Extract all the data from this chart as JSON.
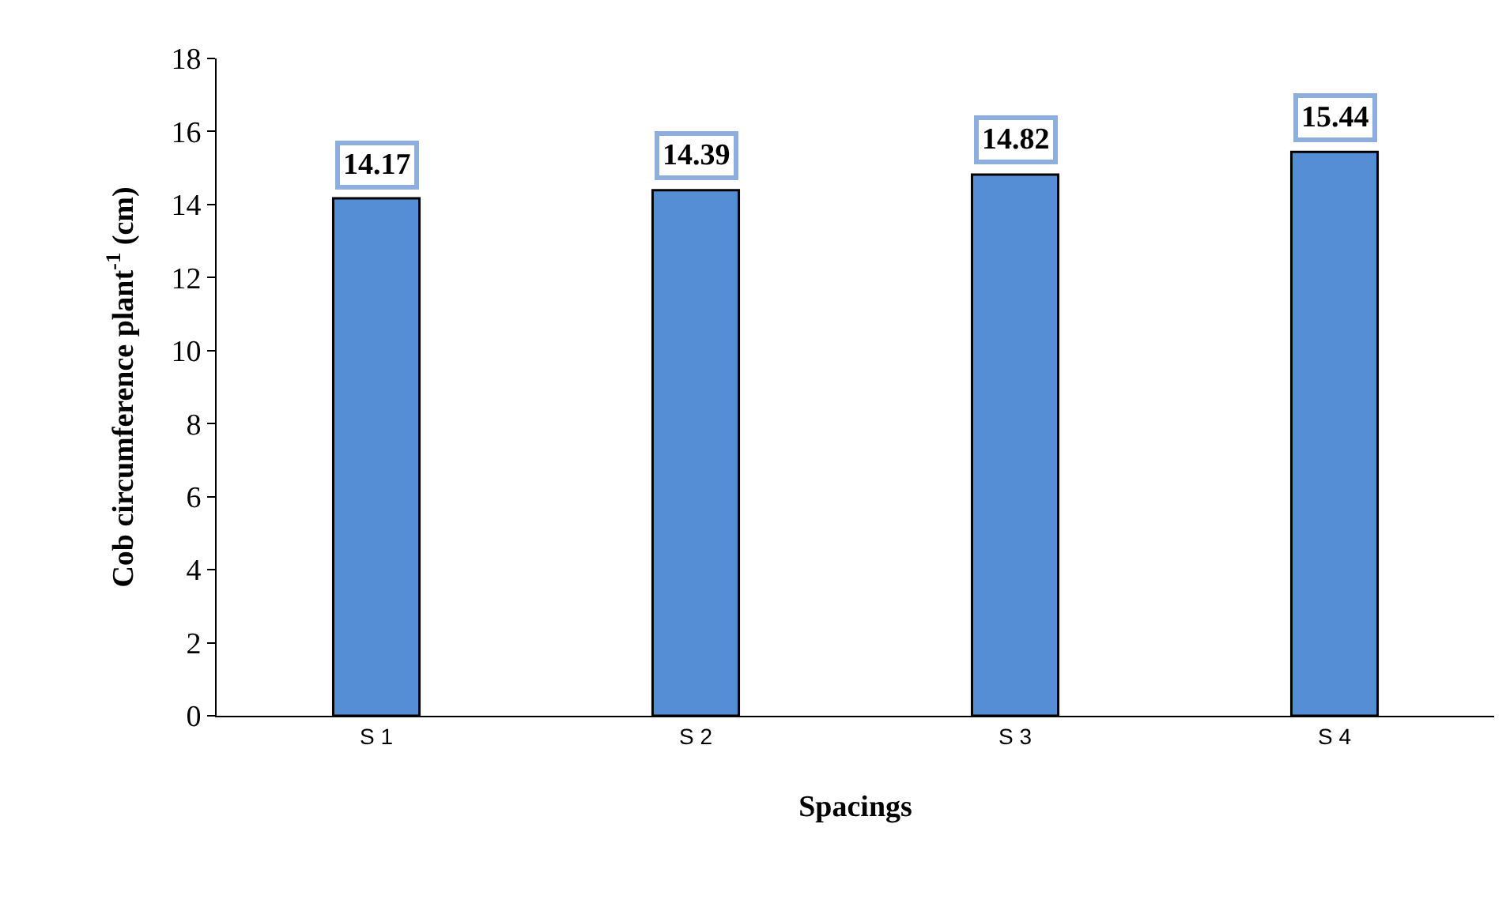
{
  "chart_data": {
    "type": "bar",
    "xlabel": "Spacings",
    "ylabel": "Cob circumference plant$^{-1}$ (cm)",
    "categories": [
      "S 1",
      "S 2",
      "S 3",
      "S 4"
    ],
    "values": [
      14.17,
      14.39,
      14.82,
      15.44
    ],
    "color": "#558ed5",
    "ylim": [
      0,
      18
    ],
    "yticks": [
      0,
      2,
      4,
      6,
      8,
      10,
      12,
      14,
      16,
      18
    ],
    "data_labels": true
  }
}
